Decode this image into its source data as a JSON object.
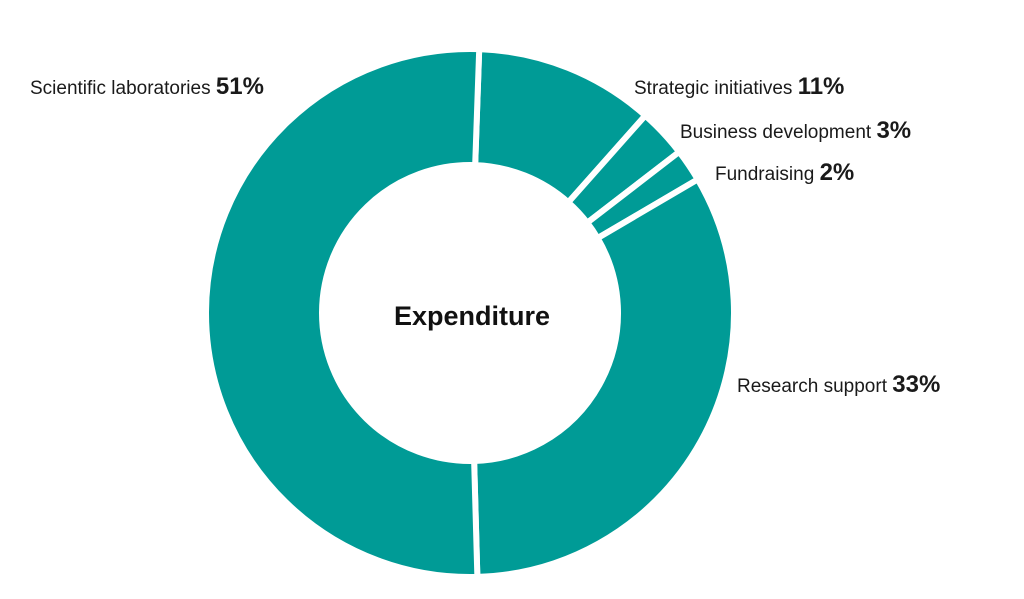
{
  "chart_data": {
    "type": "pie",
    "variant": "donut",
    "center_label": "Expenditure",
    "color": "#009B96",
    "separator_color": "#ffffff",
    "categories": [
      "Strategic initiatives",
      "Business development",
      "Fundraising",
      "Research support",
      "Scientific laboratories"
    ],
    "values": [
      11,
      3,
      2,
      33,
      51
    ],
    "value_labels": [
      "11%",
      "3%",
      "2%",
      "33%",
      "51%"
    ]
  }
}
